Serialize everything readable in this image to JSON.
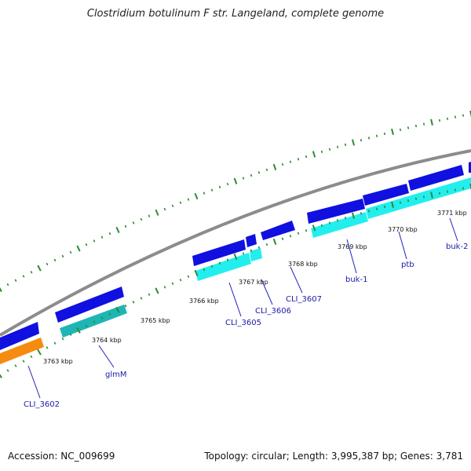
{
  "title": "Clostridium botulinum F str. Langeland, complete genome",
  "footer": {
    "accession": "Accession: NC_009699",
    "topology": "Topology: circular; Length: 3,995,387 bp; Genes: 3,781"
  },
  "colors": {
    "backbone": "#8c8c8c",
    "tick": "#2e8b2e",
    "forward_cds": "#1010e0",
    "reverse_gene_dark": "#1fb5b5",
    "reverse_gene_light": "#22eeee",
    "highlight_gene": "#f58c10",
    "label_line": "#2222bb"
  },
  "scale": {
    "tick_labels": [
      "3763 kbp",
      "3764 kbp",
      "3765 kbp",
      "3766 kbp",
      "3767 kbp",
      "3768 kbp",
      "3769 kbp",
      "3770 kbp",
      "3771 kbp"
    ]
  },
  "gene_labels": [
    "CLI_3602",
    "glmM",
    "CLI_3605",
    "CLI_3606",
    "CLI_3607",
    "buk-1",
    "ptb",
    "buk-2"
  ]
}
